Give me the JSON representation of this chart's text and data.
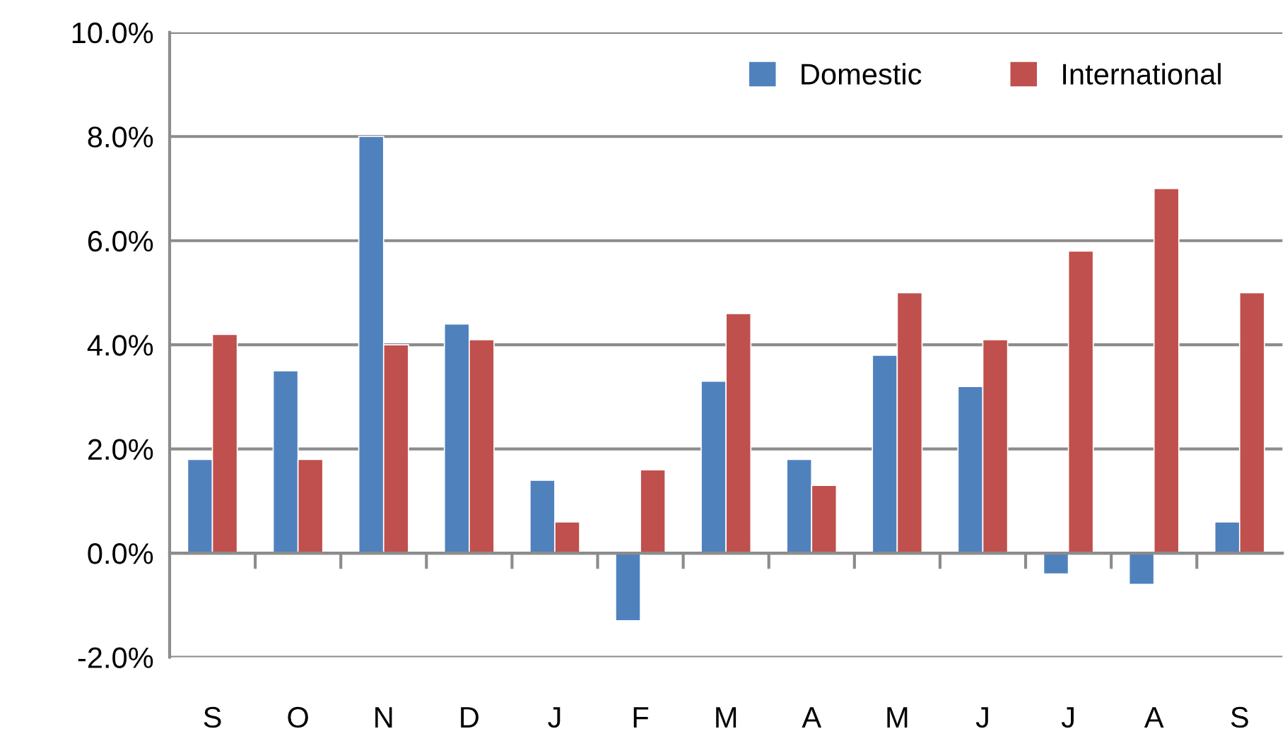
{
  "chart_data": {
    "type": "bar",
    "categories": [
      "S",
      "O",
      "N",
      "D",
      "J",
      "F",
      "M",
      "A",
      "M",
      "J",
      "J",
      "A",
      "S"
    ],
    "series": [
      {
        "name": "Domestic",
        "color": "#4f81bd",
        "values": [
          1.8,
          3.5,
          8.0,
          4.4,
          1.4,
          -1.3,
          3.3,
          1.8,
          3.8,
          3.2,
          -0.4,
          -0.6,
          0.6
        ]
      },
      {
        "name": "International",
        "color": "#c0504d",
        "values": [
          4.2,
          1.8,
          4.0,
          4.1,
          0.6,
          1.6,
          4.6,
          1.3,
          5.0,
          4.1,
          5.8,
          7.0,
          5.0
        ]
      }
    ],
    "ylim": [
      -2,
      10
    ],
    "yticks": [
      {
        "value": -2,
        "label": "-2.0%"
      },
      {
        "value": 0,
        "label": "0.0%"
      },
      {
        "value": 2,
        "label": "2.0%"
      },
      {
        "value": 4,
        "label": "4.0%"
      },
      {
        "value": 6,
        "label": "6.0%"
      },
      {
        "value": 8,
        "label": "8.0%"
      },
      {
        "value": 10,
        "label": "10.0%"
      }
    ],
    "grid": "y",
    "legend": "top right"
  }
}
